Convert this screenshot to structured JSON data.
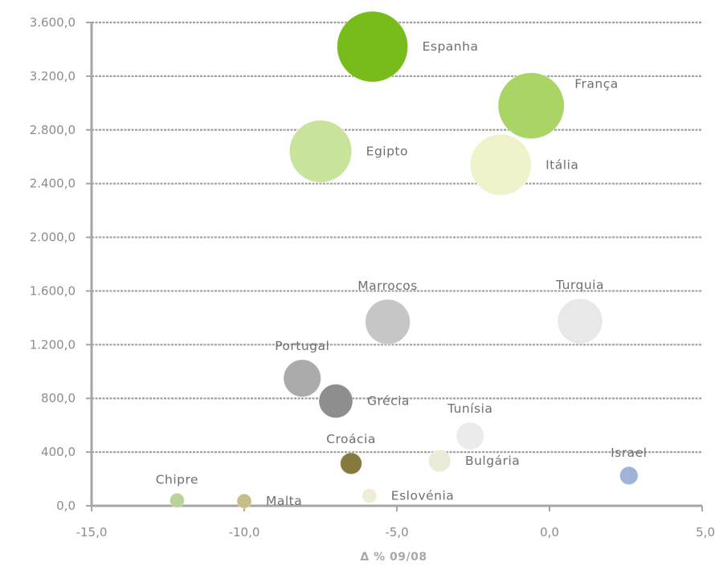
{
  "chart_data": {
    "type": "bubble",
    "xlabel": "Δ % 09/08",
    "ylabel": "",
    "xlim": [
      -15,
      5
    ],
    "ylim": [
      0,
      3600
    ],
    "x_ticks": [
      {
        "value": -15,
        "label": "-15,0"
      },
      {
        "value": -10,
        "label": "-10,0"
      },
      {
        "value": -5,
        "label": "-5,0"
      },
      {
        "value": 0,
        "label": "0,0"
      },
      {
        "value": 5,
        "label": "5,0"
      }
    ],
    "y_ticks": [
      {
        "value": 0,
        "label": "0,0"
      },
      {
        "value": 400,
        "label": "400,0"
      },
      {
        "value": 800,
        "label": "800,0"
      },
      {
        "value": 1200,
        "label": "1.200,0"
      },
      {
        "value": 1600,
        "label": "1.600,0"
      },
      {
        "value": 2000,
        "label": "2.000,0"
      },
      {
        "value": 2400,
        "label": "2.400,0"
      },
      {
        "value": 2800,
        "label": "2.800,0"
      },
      {
        "value": 3200,
        "label": "3.200,0"
      },
      {
        "value": 3600,
        "label": "3.600,0"
      }
    ],
    "grid": true,
    "points": [
      {
        "name": "Espanha",
        "x": -5.8,
        "y": 3420,
        "size": 3420,
        "color": "#78bc1c",
        "label_pos": "right"
      },
      {
        "name": "França",
        "x": -0.6,
        "y": 2980,
        "size": 2980,
        "color": "#a9d466",
        "label_pos": "upper-right"
      },
      {
        "name": "Egipto",
        "x": -7.5,
        "y": 2640,
        "size": 2640,
        "color": "#c8e39c",
        "label_pos": "right"
      },
      {
        "name": "Itália",
        "x": -1.6,
        "y": 2540,
        "size": 2540,
        "color": "#f0f2cc",
        "label_pos": "right"
      },
      {
        "name": "Marrocos",
        "x": -5.3,
        "y": 1370,
        "size": 1370,
        "color": "#c6c6c6",
        "label_pos": "above"
      },
      {
        "name": "Turquia",
        "x": 1.0,
        "y": 1375,
        "size": 1375,
        "color": "#e8e8e8",
        "label_pos": "above"
      },
      {
        "name": "Portugal",
        "x": -8.1,
        "y": 950,
        "size": 950,
        "color": "#ababab",
        "label_pos": "above"
      },
      {
        "name": "Grécia",
        "x": -7.0,
        "y": 780,
        "size": 780,
        "color": "#8e8e8e",
        "label_pos": "right"
      },
      {
        "name": "Tunísia",
        "x": -2.6,
        "y": 520,
        "size": 520,
        "color": "#ebebeb",
        "label_pos": "above"
      },
      {
        "name": "Croácia",
        "x": -6.5,
        "y": 315,
        "size": 315,
        "color": "#867a3e",
        "label_pos": "above"
      },
      {
        "name": "Bulgária",
        "x": -3.6,
        "y": 335,
        "size": 335,
        "color": "#ecebd8",
        "label_pos": "right"
      },
      {
        "name": "Israel",
        "x": 2.6,
        "y": 225,
        "size": 225,
        "color": "#9fb2d8",
        "label_pos": "above"
      },
      {
        "name": "Eslovénia",
        "x": -5.9,
        "y": 75,
        "size": 75,
        "color": "#efedd8",
        "label_pos": "right"
      },
      {
        "name": "Chipre",
        "x": -12.2,
        "y": 40,
        "size": 40,
        "color": "#b9d399",
        "label_pos": "above"
      },
      {
        "name": "Malta",
        "x": -10.0,
        "y": 35,
        "size": 35,
        "color": "#c7bd88",
        "label_pos": "right"
      }
    ]
  }
}
